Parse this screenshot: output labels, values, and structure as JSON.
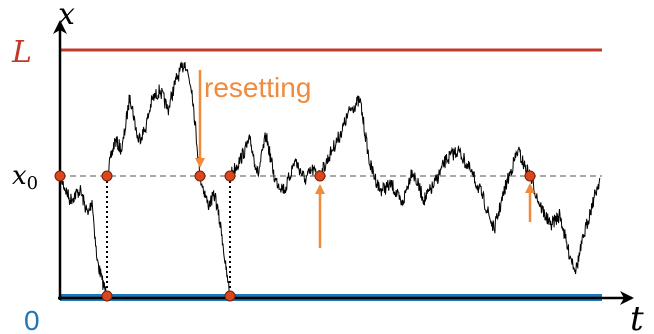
{
  "labels": {
    "x_axis": "t",
    "y_axis": "x",
    "upper_boundary": "L",
    "start_position": "x",
    "start_subscript": "0",
    "lower_boundary": "0",
    "reset_text": "resetting"
  },
  "colors": {
    "upper_boundary": "#c0392b",
    "lower_boundary": "#1f77b4",
    "reset_arrow": "#f08a3c",
    "event_marker_fill": "#d9481c",
    "trajectory": "#000000",
    "guide_line": "#8c8c8c"
  }
}
